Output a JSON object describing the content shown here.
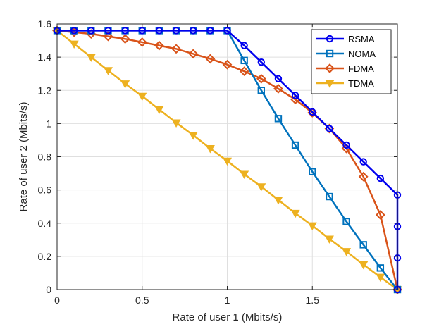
{
  "chart_data": {
    "type": "line",
    "title": "",
    "xlabel": "Rate of user 1 (Mbits/s)",
    "ylabel": "Rate of user 2 (Mbits/s)",
    "xlim": [
      0,
      2.0
    ],
    "ylim": [
      0,
      1.6
    ],
    "xticks": [
      0,
      0.5,
      1,
      1.5
    ],
    "xtick_labels": [
      "0",
      "0.5",
      "1",
      "1.5"
    ],
    "yticks": [
      0,
      0.2,
      0.4,
      0.6,
      0.8,
      1,
      1.2,
      1.4,
      1.6
    ],
    "ytick_labels": [
      "0",
      "0.2",
      "0.4",
      "0.6",
      "0.8",
      "1",
      "1.2",
      "1.4",
      "1.6"
    ],
    "grid": true,
    "legend_position": "top-right",
    "series": [
      {
        "name": "RSMA",
        "color": "#0000ee",
        "marker": "circle",
        "x": [
          0,
          0.1,
          0.2,
          0.3,
          0.4,
          0.5,
          0.6,
          0.7,
          0.8,
          0.9,
          1.0,
          1.1,
          1.2,
          1.3,
          1.4,
          1.5,
          1.6,
          1.7,
          1.8,
          1.9,
          2.0,
          2.0,
          2.0,
          2.0
        ],
        "y": [
          1.56,
          1.56,
          1.56,
          1.56,
          1.56,
          1.56,
          1.56,
          1.56,
          1.56,
          1.56,
          1.56,
          1.47,
          1.37,
          1.27,
          1.17,
          1.07,
          0.97,
          0.87,
          0.77,
          0.67,
          0.57,
          0.38,
          0.19,
          0.0
        ]
      },
      {
        "name": "NOMA",
        "color": "#0072bd",
        "marker": "square",
        "x": [
          0,
          0.1,
          0.2,
          0.3,
          0.4,
          0.5,
          0.6,
          0.7,
          0.8,
          0.9,
          1.0,
          1.1,
          1.2,
          1.3,
          1.4,
          1.5,
          1.6,
          1.7,
          1.8,
          1.9,
          2.0
        ],
        "y": [
          1.56,
          1.56,
          1.56,
          1.56,
          1.56,
          1.56,
          1.56,
          1.56,
          1.56,
          1.56,
          1.56,
          1.38,
          1.2,
          1.03,
          0.87,
          0.71,
          0.56,
          0.41,
          0.27,
          0.13,
          0.0
        ]
      },
      {
        "name": "FDMA",
        "color": "#d95319",
        "marker": "diamond",
        "x": [
          0,
          0.1,
          0.2,
          0.3,
          0.4,
          0.5,
          0.6,
          0.7,
          0.8,
          0.9,
          1.0,
          1.1,
          1.2,
          1.3,
          1.4,
          1.5,
          1.6,
          1.7,
          1.8,
          1.9,
          2.0
        ],
        "y": [
          1.56,
          1.55,
          1.54,
          1.525,
          1.51,
          1.49,
          1.47,
          1.45,
          1.42,
          1.39,
          1.355,
          1.315,
          1.27,
          1.21,
          1.145,
          1.065,
          0.97,
          0.85,
          0.68,
          0.45,
          0.0
        ]
      },
      {
        "name": "TDMA",
        "color": "#edb120",
        "marker": "triangle-down",
        "x": [
          0,
          0.1,
          0.2,
          0.3,
          0.4,
          0.5,
          0.6,
          0.7,
          0.8,
          0.9,
          1.0,
          1.1,
          1.2,
          1.3,
          1.4,
          1.5,
          1.6,
          1.7,
          1.8,
          1.9,
          2.0
        ],
        "y": [
          1.56,
          1.48,
          1.4,
          1.32,
          1.24,
          1.165,
          1.085,
          1.005,
          0.93,
          0.85,
          0.775,
          0.695,
          0.62,
          0.54,
          0.46,
          0.385,
          0.305,
          0.23,
          0.15,
          0.075,
          0.0
        ]
      }
    ]
  }
}
